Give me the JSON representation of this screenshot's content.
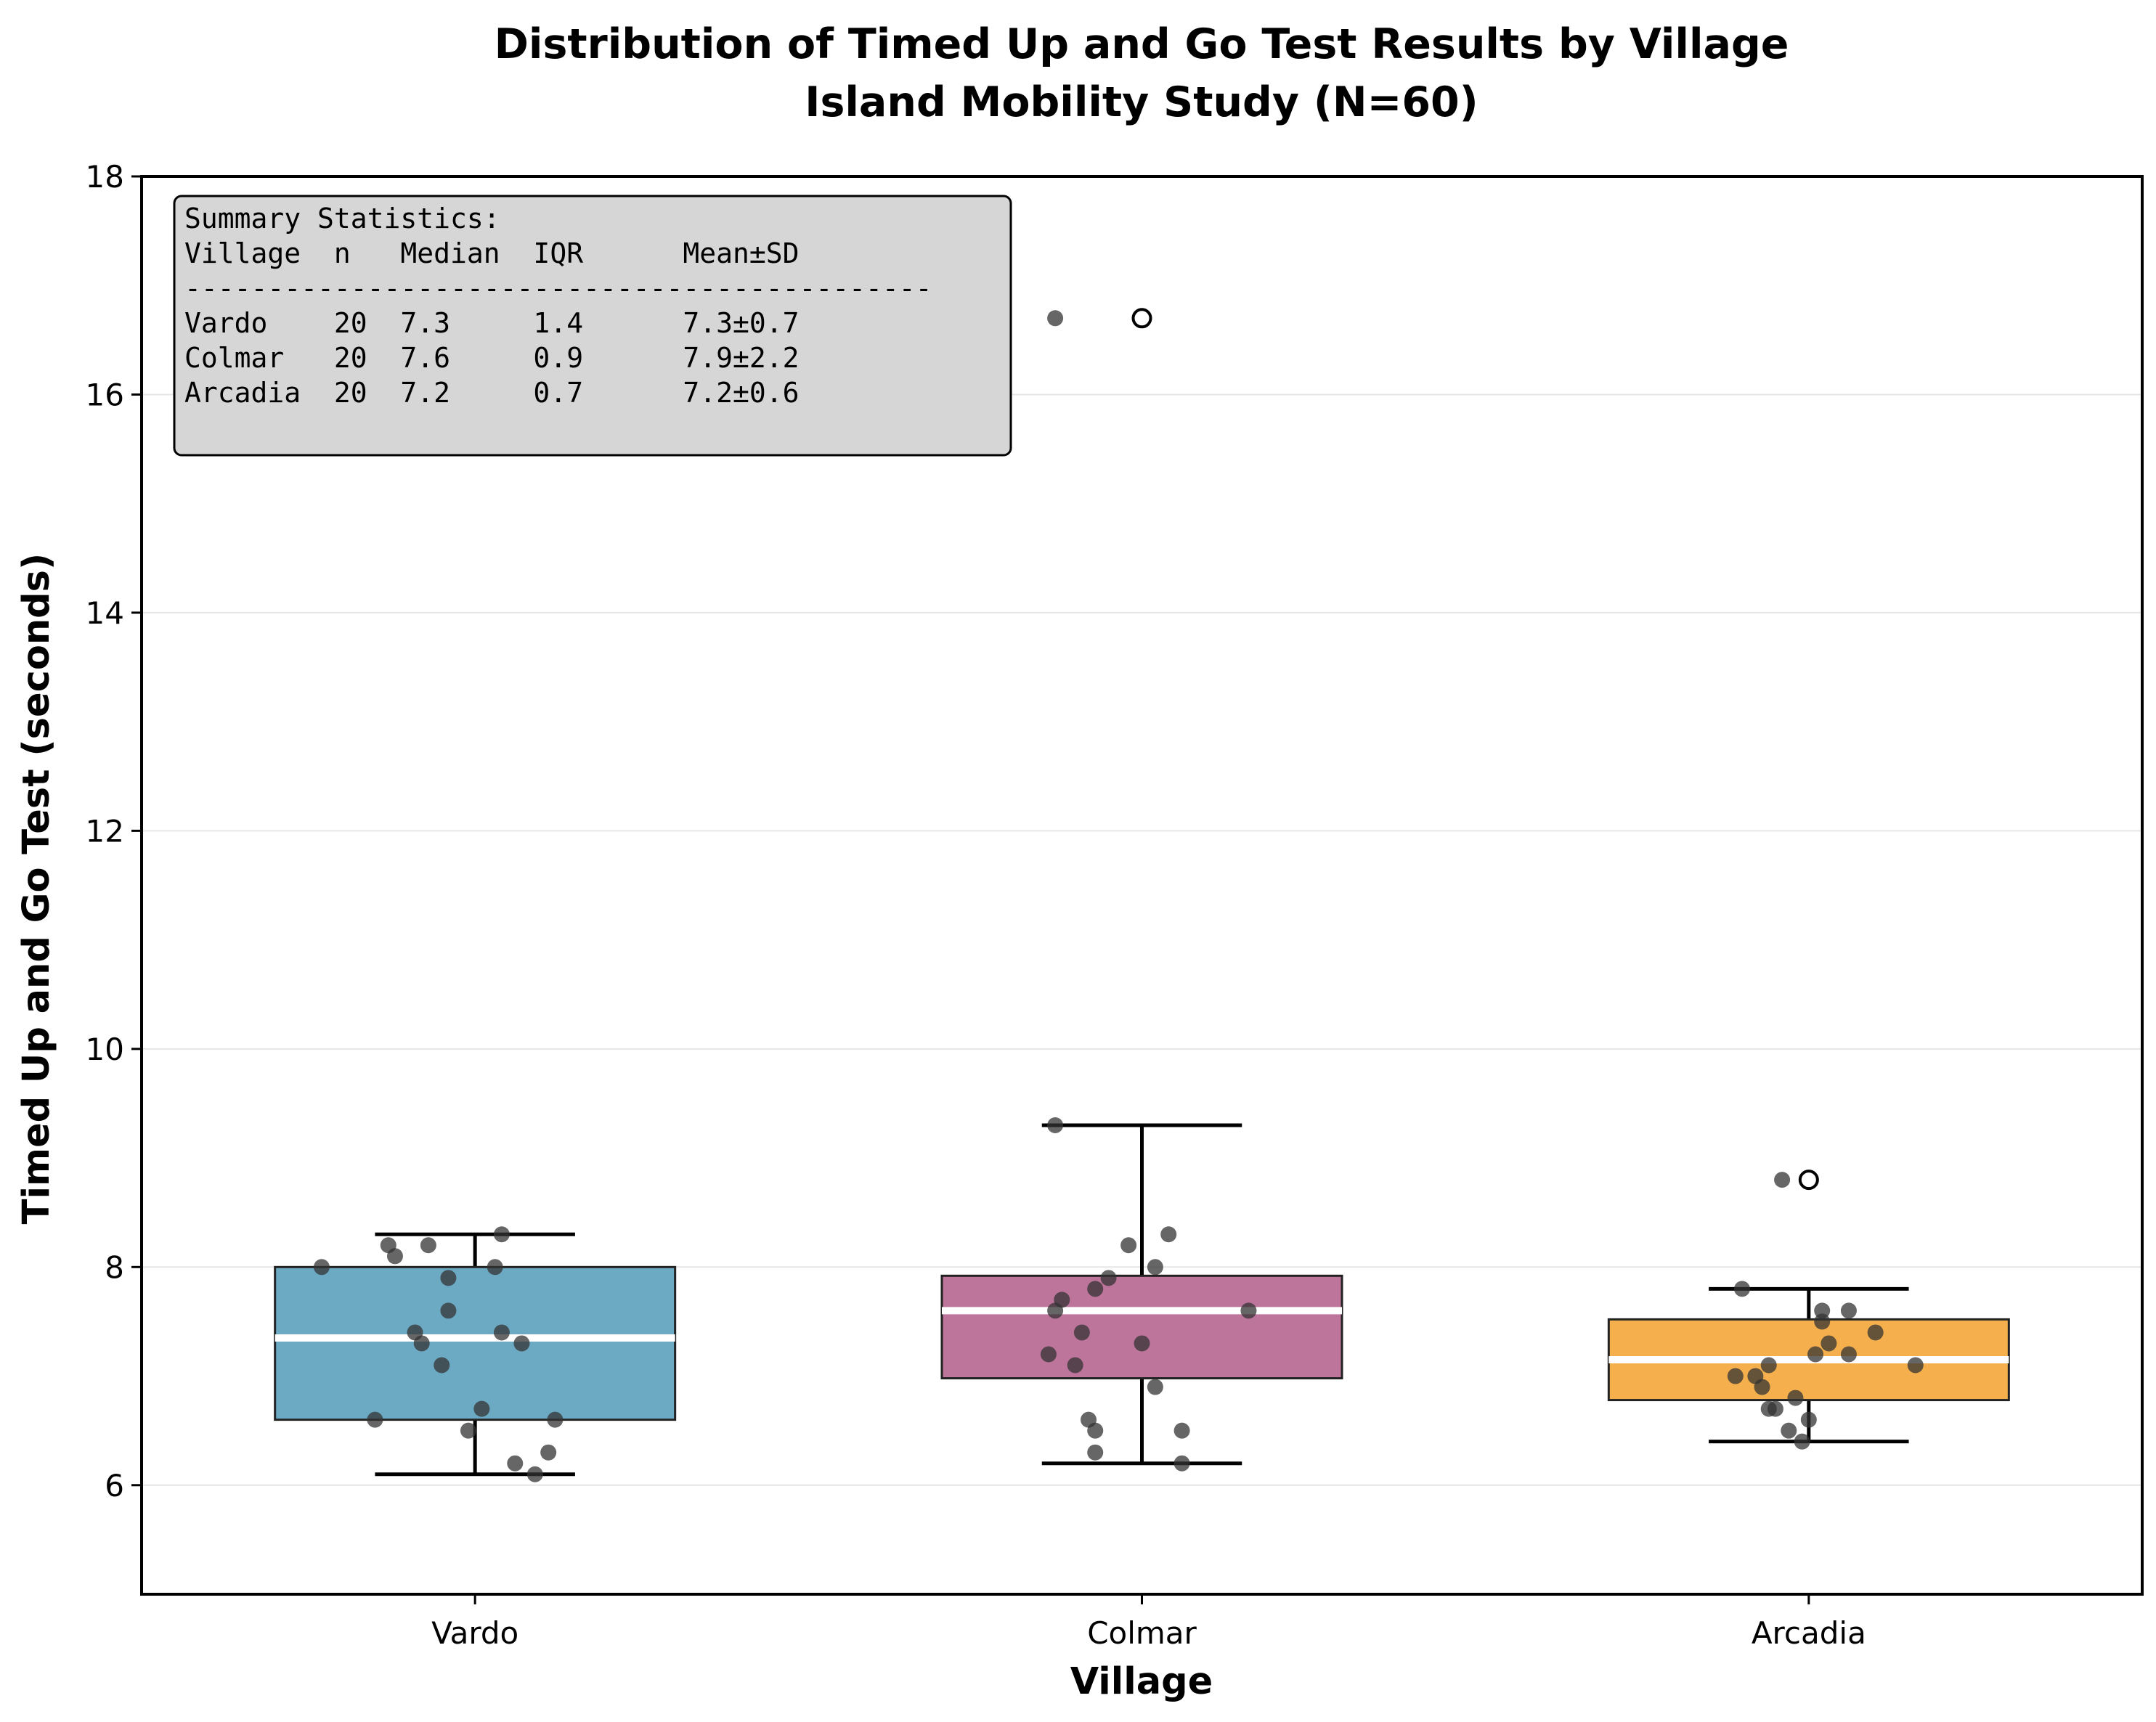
{
  "chart_data": {
    "type": "box",
    "title": "Distribution of Timed Up and Go Test Results by Village",
    "subtitle": "Island Mobility Study (N=60)",
    "xlabel": "Village",
    "ylabel": "Timed Up and Go Test (seconds)",
    "ylim": [
      5,
      18
    ],
    "yticks": [
      6,
      8,
      10,
      12,
      14,
      16,
      18
    ],
    "categories": [
      "Vardo",
      "Colmar",
      "Arcadia"
    ],
    "grid": "horizontal",
    "series": [
      {
        "category": "Vardo",
        "color": "#2E86AB",
        "q1": 6.6,
        "median": 7.35,
        "q3": 8.0,
        "whisker_low": 6.1,
        "whisker_high": 8.3,
        "outliers": [],
        "points": [
          {
            "dx": -0.23,
            "y": 8.0
          },
          {
            "dx": -0.13,
            "y": 8.2
          },
          {
            "dx": -0.12,
            "y": 8.1
          },
          {
            "dx": -0.07,
            "y": 8.2
          },
          {
            "dx": 0.03,
            "y": 8.0
          },
          {
            "dx": 0.04,
            "y": 8.3
          },
          {
            "dx": -0.04,
            "y": 7.9
          },
          {
            "dx": -0.04,
            "y": 7.6
          },
          {
            "dx": -0.09,
            "y": 7.4
          },
          {
            "dx": 0.04,
            "y": 7.4
          },
          {
            "dx": -0.08,
            "y": 7.3
          },
          {
            "dx": 0.07,
            "y": 7.3
          },
          {
            "dx": -0.05,
            "y": 7.1
          },
          {
            "dx": 0.01,
            "y": 6.7
          },
          {
            "dx": -0.15,
            "y": 6.6
          },
          {
            "dx": 0.12,
            "y": 6.6
          },
          {
            "dx": -0.01,
            "y": 6.5
          },
          {
            "dx": 0.11,
            "y": 6.3
          },
          {
            "dx": 0.06,
            "y": 6.2
          },
          {
            "dx": 0.09,
            "y": 6.1
          }
        ]
      },
      {
        "category": "Colmar",
        "color": "#A23B72",
        "q1": 6.98,
        "median": 7.6,
        "q3": 7.92,
        "whisker_low": 6.2,
        "whisker_high": 9.3,
        "outliers": [
          16.7
        ],
        "points": [
          {
            "dx": -0.13,
            "y": 16.7
          },
          {
            "dx": -0.13,
            "y": 9.3
          },
          {
            "dx": 0.04,
            "y": 8.3
          },
          {
            "dx": -0.02,
            "y": 8.2
          },
          {
            "dx": 0.02,
            "y": 8.0
          },
          {
            "dx": -0.05,
            "y": 7.9
          },
          {
            "dx": -0.07,
            "y": 7.8
          },
          {
            "dx": -0.12,
            "y": 7.7
          },
          {
            "dx": -0.13,
            "y": 7.6
          },
          {
            "dx": 0.16,
            "y": 7.6
          },
          {
            "dx": -0.09,
            "y": 7.4
          },
          {
            "dx": 0.0,
            "y": 7.3
          },
          {
            "dx": -0.14,
            "y": 7.2
          },
          {
            "dx": -0.1,
            "y": 7.1
          },
          {
            "dx": -0.08,
            "y": 6.6
          },
          {
            "dx": -0.07,
            "y": 6.5
          },
          {
            "dx": 0.06,
            "y": 6.5
          },
          {
            "dx": -0.07,
            "y": 6.3
          },
          {
            "dx": 0.06,
            "y": 6.2
          },
          {
            "dx": 0.02,
            "y": 6.9
          }
        ]
      },
      {
        "category": "Arcadia",
        "color": "#F18F01",
        "q1": 6.78,
        "median": 7.15,
        "q3": 7.52,
        "whisker_low": 6.4,
        "whisker_high": 7.8,
        "outliers": [
          8.8
        ],
        "points": [
          {
            "dx": -0.04,
            "y": 8.8
          },
          {
            "dx": -0.1,
            "y": 7.8
          },
          {
            "dx": 0.02,
            "y": 7.6
          },
          {
            "dx": 0.06,
            "y": 7.6
          },
          {
            "dx": 0.02,
            "y": 7.5
          },
          {
            "dx": 0.1,
            "y": 7.4
          },
          {
            "dx": 0.01,
            "y": 7.2
          },
          {
            "dx": 0.06,
            "y": 7.2
          },
          {
            "dx": -0.06,
            "y": 7.1
          },
          {
            "dx": 0.16,
            "y": 7.1
          },
          {
            "dx": -0.11,
            "y": 7.0
          },
          {
            "dx": -0.07,
            "y": 6.9
          },
          {
            "dx": -0.02,
            "y": 6.8
          },
          {
            "dx": -0.06,
            "y": 6.7
          },
          {
            "dx": -0.05,
            "y": 6.7
          },
          {
            "dx": 0.0,
            "y": 6.6
          },
          {
            "dx": -0.03,
            "y": 6.5
          },
          {
            "dx": -0.01,
            "y": 6.4
          },
          {
            "dx": 0.03,
            "y": 7.3
          },
          {
            "dx": -0.08,
            "y": 7.0
          }
        ]
      }
    ],
    "stats_box": {
      "heading": "Summary Statistics:",
      "header": "Village  n   Median  IQR      Mean±SD",
      "divider": "---------------------------------------------",
      "rows": [
        "Vardo    20  7.3     1.4      7.3±0.7",
        "Colmar   20  7.6     0.9      7.9±2.2",
        "Arcadia  20  7.2     0.7      7.2±0.6"
      ]
    }
  }
}
